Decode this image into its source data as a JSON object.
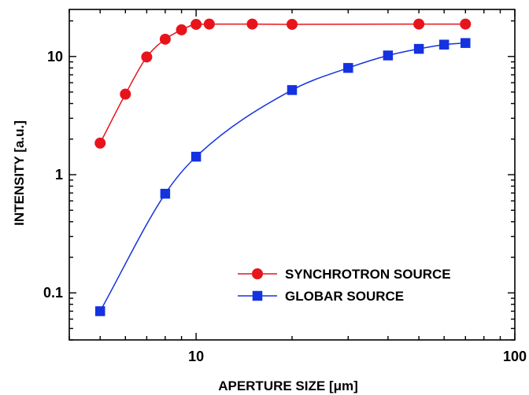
{
  "chart_data": {
    "type": "line",
    "xlabel": "APERTURE SIZE [μm]",
    "ylabel": "INTENSITY [a.u.]",
    "xscale": "log",
    "yscale": "log",
    "xlim": [
      4.0,
      100
    ],
    "ylim": [
      0.04,
      25
    ],
    "x_tick_labels": [
      {
        "value": 10,
        "label": "10"
      },
      {
        "value": 100,
        "label": "100"
      }
    ],
    "y_tick_labels": [
      {
        "value": 0.1,
        "label": "0.1"
      },
      {
        "value": 1,
        "label": "1"
      },
      {
        "value": 10,
        "label": "10"
      }
    ],
    "grid": false,
    "legend_position": "bottom-right",
    "series": [
      {
        "name": "SYNCHROTRON SOURCE",
        "color": "#e8141c",
        "marker": "circle",
        "x": [
          5,
          6,
          7,
          8,
          9,
          10,
          11,
          15,
          20,
          50,
          70
        ],
        "y": [
          1.85,
          4.8,
          9.9,
          14.0,
          16.8,
          18.7,
          18.8,
          18.8,
          18.7,
          18.8,
          18.8
        ]
      },
      {
        "name": "GLOBAR SOURCE",
        "color": "#1432e0",
        "marker": "square",
        "x": [
          5,
          8,
          10,
          20,
          30,
          40,
          50,
          60,
          70
        ],
        "y": [
          0.07,
          0.69,
          1.42,
          5.2,
          8.0,
          10.2,
          11.6,
          12.6,
          13.0
        ]
      }
    ]
  }
}
